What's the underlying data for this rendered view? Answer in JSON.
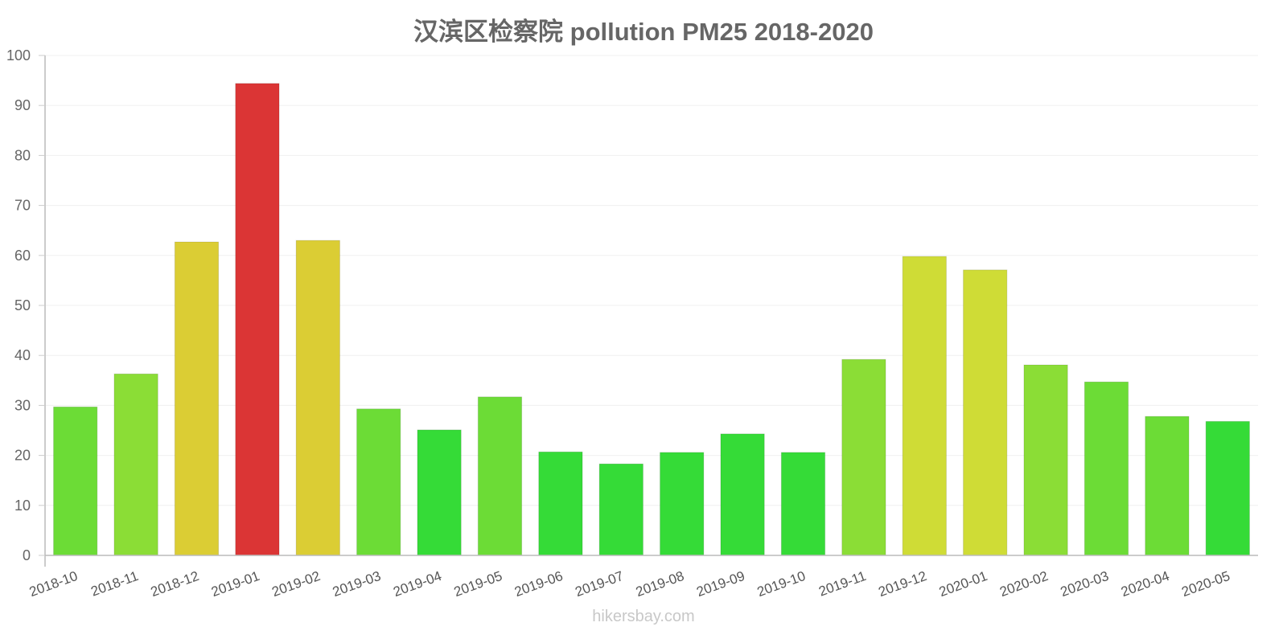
{
  "title": "汉滨区检察院 pollution PM25 2018-2020",
  "watermark": "hikersbay.com",
  "chart_data": {
    "type": "bar",
    "title": "汉滨区检察院 pollution PM25 2018-2020",
    "xlabel": "",
    "ylabel": "",
    "ylim": [
      0,
      100
    ],
    "yticks": [
      0,
      10,
      20,
      30,
      40,
      50,
      60,
      70,
      80,
      90,
      100
    ],
    "grid": true,
    "legend": null,
    "categories": [
      "2018-10",
      "2018-11",
      "2018-12",
      "2019-01",
      "2019-02",
      "2019-03",
      "2019-04",
      "2019-05",
      "2019-06",
      "2019-07",
      "2019-08",
      "2019-09",
      "2019-10",
      "2019-11",
      "2019-12",
      "2020-01",
      "2020-02",
      "2020-03",
      "2020-04",
      "2020-05"
    ],
    "values": [
      29.7,
      36.3,
      62.7,
      94.4,
      63.0,
      29.3,
      25.1,
      31.7,
      20.7,
      18.3,
      20.6,
      24.3,
      20.6,
      39.2,
      59.8,
      57.1,
      38.1,
      34.7,
      27.8,
      26.8
    ],
    "colors": [
      "#6cdc36",
      "#8bdd36",
      "#dbcd34",
      "#db3535",
      "#dbcd34",
      "#6cdc36",
      "#35db37",
      "#6cdc36",
      "#35db37",
      "#35db37",
      "#35db37",
      "#35db37",
      "#35db37",
      "#8bdd36",
      "#cfdc36",
      "#cfdc36",
      "#8bdd36",
      "#6cdc36",
      "#6cdc36",
      "#35db37"
    ]
  }
}
